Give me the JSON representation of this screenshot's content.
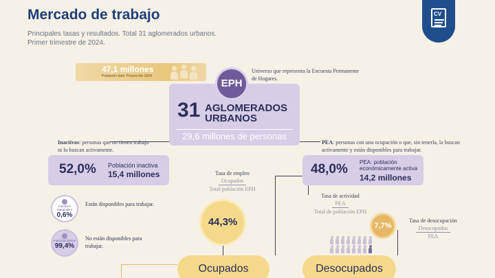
{
  "header": {
    "title": "Mercado de trabajo",
    "subtitle_lines": [
      "Principales tasas y resultados. Total 31 aglomerados urbanos.",
      "Primer trimestre de 2024."
    ],
    "logo_text": "CV",
    "logo_icon": "document-icon"
  },
  "population": {
    "value": "47,1 millones",
    "label": "Población total. Proyección 2024",
    "icon": "people-icon"
  },
  "eph": {
    "badge": "EPH",
    "note": "Universo que representa la Encuesta Permanente de Hogares.",
    "aglomerados_number": "31",
    "aglomerados_text": "AGLOMERADOS URBANOS",
    "total_personas": "29,6 millones de personas"
  },
  "inactivos": {
    "desc_keyword": "Inactivos",
    "desc_rest": ": personas que no tienen trabajo ni lo buscan activamente.",
    "pct": "52,0%",
    "label": "Población inactiva",
    "value": "15,4 millones",
    "marginales": {
      "label": "Inactivos Marginales",
      "pct": "0,6%",
      "note": "Están disponibles para trabajar."
    },
    "tipicos": {
      "label": "Inactivos típicos",
      "pct": "99,4%",
      "note": "No están disponibles para trabajar."
    }
  },
  "pea": {
    "desc_keyword": "PEA",
    "desc_rest": ": personas con una ocupación o que, sin tenerla, la buscan activamente y están disponibles para trabajar.",
    "pct": "48,0%",
    "label": "PEA: población económicamente activa",
    "value": "14,2 millones"
  },
  "tasa_empleo": {
    "title": "Tasa de empleo",
    "num": "Ocupados",
    "den": "Total población EPH",
    "value": "44,3%"
  },
  "tasa_actividad": {
    "title": "Tasa de actividad",
    "num": "PEA",
    "den": "Total de población EPH"
  },
  "tasa_desocupacion": {
    "title": "Tasa de desocupación",
    "num": "Desocupados",
    "den": "PEA",
    "value": "7,7%"
  },
  "groups": {
    "ocupados": "Ocupados",
    "desocupados": "Desocupados"
  },
  "colors": {
    "primary": "#1f3f7a",
    "lilac": "#d7cde7",
    "yellow": "#f5d98a",
    "accent": "#6f5b99",
    "background": "#f6f1e6"
  }
}
